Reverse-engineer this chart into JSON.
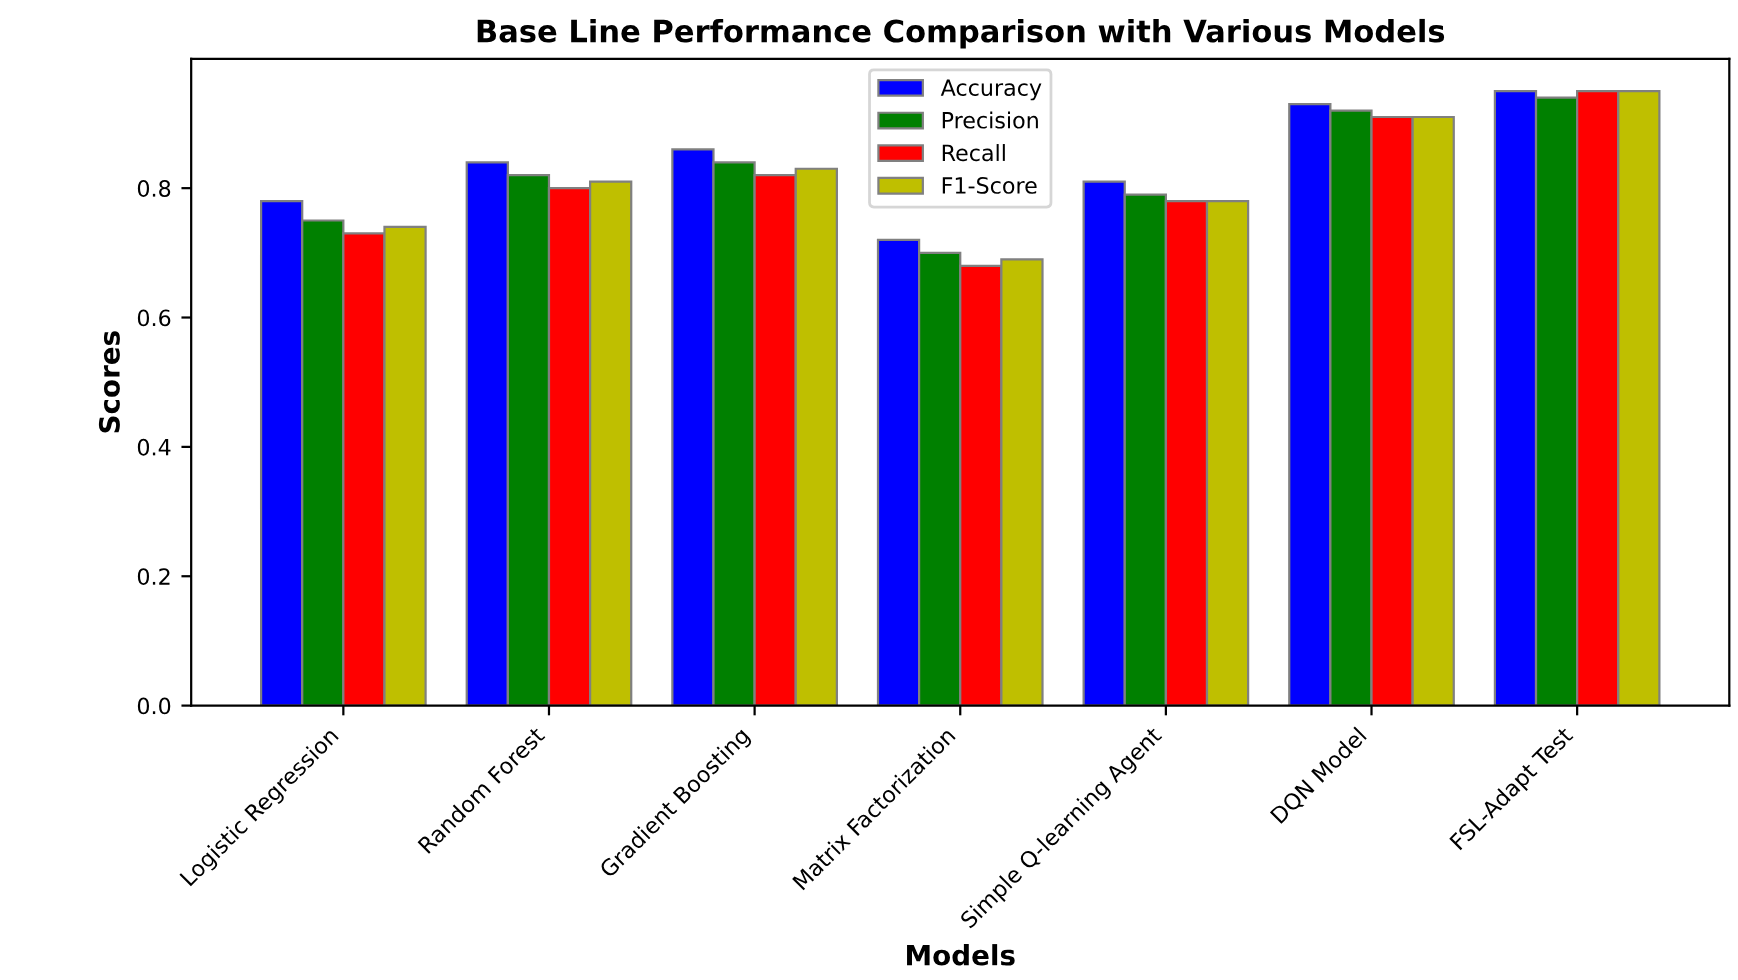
{
  "chart_data": {
    "type": "bar",
    "title": "Base Line Performance Comparison with Various Models",
    "xlabel": "Models",
    "ylabel": "Scores",
    "categories": [
      "Logistic Regression",
      "Random Forest",
      "Gradient Boosting",
      "Matrix Factorization",
      "Simple Q-learning Agent",
      "DQN Model",
      "FSL-Adapt Test"
    ],
    "series": [
      {
        "name": "Accuracy",
        "color": "#0000ff",
        "values": [
          0.78,
          0.84,
          0.86,
          0.72,
          0.81,
          0.93,
          0.95
        ]
      },
      {
        "name": "Precision",
        "color": "#008000",
        "values": [
          0.75,
          0.82,
          0.84,
          0.7,
          0.79,
          0.92,
          0.94
        ]
      },
      {
        "name": "Recall",
        "color": "#ff0000",
        "values": [
          0.73,
          0.8,
          0.82,
          0.68,
          0.78,
          0.91,
          0.95
        ]
      },
      {
        "name": "F1-Score",
        "color": "#bfbf00",
        "values": [
          0.74,
          0.81,
          0.83,
          0.69,
          0.78,
          0.91,
          0.95
        ]
      }
    ],
    "ylim": [
      0,
      1.0
    ],
    "yticks": [
      {
        "value": 0,
        "label": "0.0"
      },
      0.2,
      0.4,
      0.6,
      0.8
    ],
    "legend": "top",
    "grid": false
  }
}
